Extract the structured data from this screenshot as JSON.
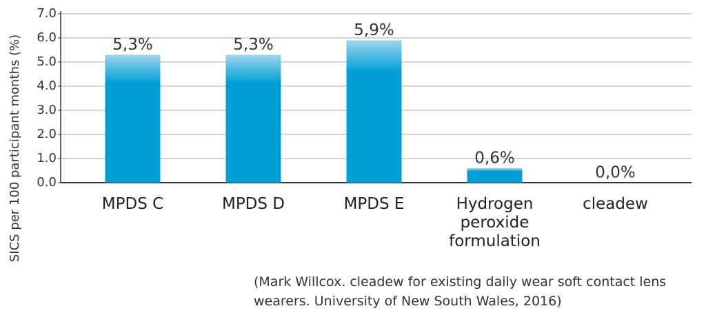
{
  "chart_data": {
    "type": "bar",
    "y_label": "SICS  per 100 participant months (%)",
    "categories": [
      "MPDS C",
      "MPDS D",
      "MPDS E",
      "Hydrogen peroxide formulation",
      "cleadew"
    ],
    "values": [
      5.3,
      5.3,
      5.9,
      0.6,
      0.0
    ],
    "value_labels": [
      "5,3%",
      "5,3%",
      "5,9%",
      "0,6%",
      "0,0%"
    ],
    "color": "#00a0d6",
    "ylim": [
      0,
      7
    ],
    "yticks": [
      {
        "value": 0,
        "label": "0.0"
      },
      {
        "value": 1,
        "label": "1.0"
      },
      {
        "value": 2,
        "label": "2.0"
      },
      {
        "value": 3,
        "label": "3.0"
      },
      {
        "value": 4,
        "label": "4.0"
      },
      {
        "value": 5,
        "label": "5.0"
      },
      {
        "value": 6,
        "label": "6.0"
      },
      {
        "value": 7,
        "label": "7.0"
      }
    ],
    "grid": true,
    "caption": [
      "(Mark Willcox. cleadew for existing daily wear soft contact lens",
      "wearers. University of New South Wales, 2016)"
    ]
  }
}
